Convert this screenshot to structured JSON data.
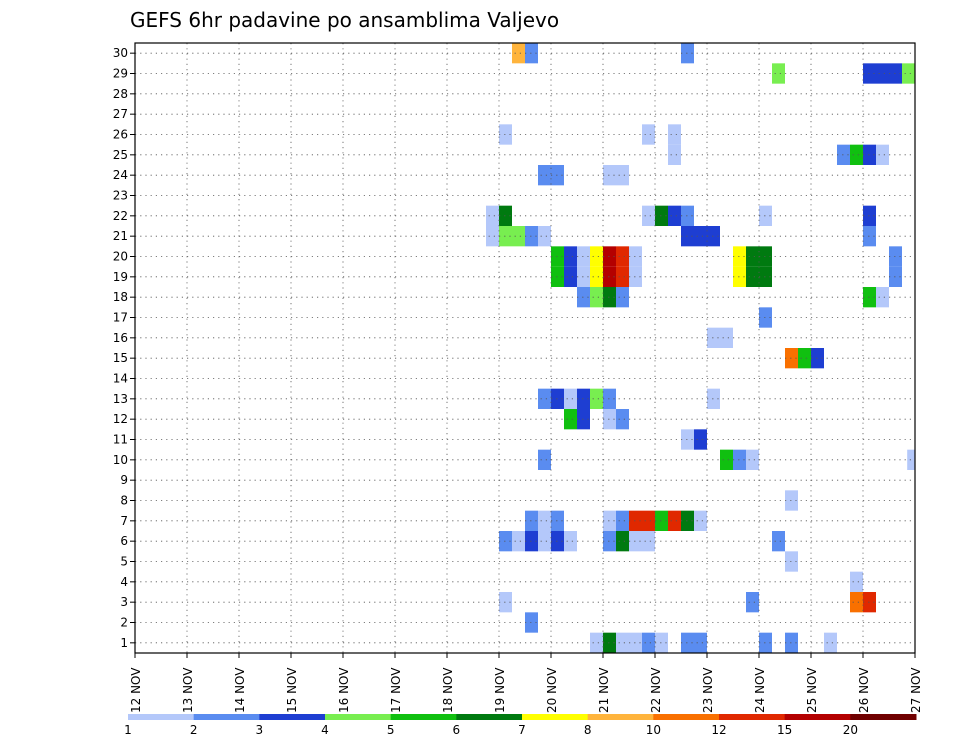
{
  "chart_data": {
    "type": "heatmap",
    "title": "GEFS 6hr padavine po ansamblima Valjevo",
    "xlabel": "",
    "ylabel": "",
    "x_tick_labels": [
      "12 NOV",
      "13 NOV",
      "14 NOV",
      "15 NOV",
      "16 NOV",
      "17 NOV",
      "18 NOV",
      "19 NOV",
      "20 NOV",
      "21 NOV",
      "22 NOV",
      "23 NOV",
      "24 NOV",
      "25 NOV",
      "26 NOV",
      "27 NOV"
    ],
    "x_range_days": [
      12,
      27
    ],
    "y_tick_labels": [
      1,
      2,
      3,
      4,
      5,
      6,
      7,
      8,
      9,
      10,
      11,
      12,
      13,
      14,
      15,
      16,
      17,
      18,
      19,
      20,
      21,
      22,
      23,
      24,
      25,
      26,
      27,
      28,
      29,
      30
    ],
    "y_range": [
      0.5,
      30.5
    ],
    "grid": "dotted",
    "legend": {
      "position": "bottom",
      "labels": [
        "1",
        "2",
        "3",
        "4",
        "5",
        "6",
        "7",
        "8",
        "10",
        "12",
        "15",
        "20"
      ],
      "colors": [
        "#b4c8fa",
        "#5a8cf0",
        "#1e3ed2",
        "#78ee50",
        "#10c010",
        "#007a10",
        "#ffff00",
        "#ffb43c",
        "#f97000",
        "#e02800",
        "#b40000",
        "#700000"
      ]
    },
    "cell_width_days": 0.25,
    "cells": [
      {
        "member": 30,
        "day": 19.25,
        "color": "#ffb43c"
      },
      {
        "member": 30,
        "day": 19.5,
        "color": "#5a8cf0"
      },
      {
        "member": 30,
        "day": 22.5,
        "color": "#5a8cf0"
      },
      {
        "member": 29,
        "day": 24.25,
        "color": "#78ee50"
      },
      {
        "member": 29,
        "day": 26.0,
        "color": "#1e3ed2"
      },
      {
        "member": 29,
        "day": 26.25,
        "color": "#1e3ed2"
      },
      {
        "member": 29,
        "day": 26.5,
        "color": "#1e3ed2"
      },
      {
        "member": 29,
        "day": 26.75,
        "color": "#78ee50"
      },
      {
        "member": 26,
        "day": 19.0,
        "color": "#b4c8fa"
      },
      {
        "member": 26,
        "day": 21.75,
        "color": "#b4c8fa"
      },
      {
        "member": 26,
        "day": 22.25,
        "color": "#b4c8fa"
      },
      {
        "member": 25,
        "day": 22.25,
        "color": "#b4c8fa"
      },
      {
        "member": 25,
        "day": 25.5,
        "color": "#5a8cf0"
      },
      {
        "member": 25,
        "day": 25.75,
        "color": "#10c010"
      },
      {
        "member": 25,
        "day": 26.0,
        "color": "#1e3ed2"
      },
      {
        "member": 25,
        "day": 26.25,
        "color": "#b4c8fa"
      },
      {
        "member": 24,
        "day": 19.75,
        "color": "#5a8cf0"
      },
      {
        "member": 24,
        "day": 20.0,
        "color": "#5a8cf0"
      },
      {
        "member": 24,
        "day": 21.0,
        "color": "#b4c8fa"
      },
      {
        "member": 24,
        "day": 21.25,
        "color": "#b4c8fa"
      },
      {
        "member": 22,
        "day": 18.75,
        "color": "#b4c8fa"
      },
      {
        "member": 22,
        "day": 19.0,
        "color": "#007a10"
      },
      {
        "member": 22,
        "day": 21.75,
        "color": "#b4c8fa"
      },
      {
        "member": 22,
        "day": 22.0,
        "color": "#007a10"
      },
      {
        "member": 22,
        "day": 22.25,
        "color": "#1e3ed2"
      },
      {
        "member": 22,
        "day": 22.5,
        "color": "#5a8cf0"
      },
      {
        "member": 22,
        "day": 24.0,
        "color": "#b4c8fa"
      },
      {
        "member": 22,
        "day": 26.0,
        "color": "#1e3ed2"
      },
      {
        "member": 21,
        "day": 18.75,
        "color": "#b4c8fa"
      },
      {
        "member": 21,
        "day": 19.0,
        "color": "#78ee50"
      },
      {
        "member": 21,
        "day": 19.25,
        "color": "#78ee50"
      },
      {
        "member": 21,
        "day": 19.5,
        "color": "#5a8cf0"
      },
      {
        "member": 21,
        "day": 19.75,
        "color": "#b4c8fa"
      },
      {
        "member": 21,
        "day": 22.5,
        "color": "#1e3ed2"
      },
      {
        "member": 21,
        "day": 22.75,
        "color": "#1e3ed2"
      },
      {
        "member": 21,
        "day": 23.0,
        "color": "#1e3ed2"
      },
      {
        "member": 21,
        "day": 26.0,
        "color": "#5a8cf0"
      },
      {
        "member": 20,
        "day": 20.0,
        "color": "#10c010"
      },
      {
        "member": 20,
        "day": 20.25,
        "color": "#1e3ed2"
      },
      {
        "member": 20,
        "day": 20.5,
        "color": "#b4c8fa"
      },
      {
        "member": 20,
        "day": 20.75,
        "color": "#ffff00"
      },
      {
        "member": 20,
        "day": 21.0,
        "color": "#b40000"
      },
      {
        "member": 20,
        "day": 21.25,
        "color": "#e02800"
      },
      {
        "member": 20,
        "day": 21.5,
        "color": "#b4c8fa"
      },
      {
        "member": 20,
        "day": 23.5,
        "color": "#ffff00"
      },
      {
        "member": 20,
        "day": 23.75,
        "color": "#007a10"
      },
      {
        "member": 20,
        "day": 24.0,
        "color": "#007a10"
      },
      {
        "member": 20,
        "day": 26.5,
        "color": "#5a8cf0"
      },
      {
        "member": 19,
        "day": 20.0,
        "color": "#10c010"
      },
      {
        "member": 19,
        "day": 20.25,
        "color": "#1e3ed2"
      },
      {
        "member": 19,
        "day": 20.5,
        "color": "#b4c8fa"
      },
      {
        "member": 19,
        "day": 20.75,
        "color": "#ffff00"
      },
      {
        "member": 19,
        "day": 21.0,
        "color": "#b40000"
      },
      {
        "member": 19,
        "day": 21.25,
        "color": "#e02800"
      },
      {
        "member": 19,
        "day": 21.5,
        "color": "#b4c8fa"
      },
      {
        "member": 19,
        "day": 23.5,
        "color": "#ffff00"
      },
      {
        "member": 19,
        "day": 23.75,
        "color": "#007a10"
      },
      {
        "member": 19,
        "day": 24.0,
        "color": "#007a10"
      },
      {
        "member": 19,
        "day": 26.5,
        "color": "#5a8cf0"
      },
      {
        "member": 18,
        "day": 20.5,
        "color": "#5a8cf0"
      },
      {
        "member": 18,
        "day": 20.75,
        "color": "#78ee50"
      },
      {
        "member": 18,
        "day": 21.0,
        "color": "#007a10"
      },
      {
        "member": 18,
        "day": 21.25,
        "color": "#5a8cf0"
      },
      {
        "member": 18,
        "day": 26.0,
        "color": "#10c010"
      },
      {
        "member": 18,
        "day": 26.25,
        "color": "#b4c8fa"
      },
      {
        "member": 17,
        "day": 24.0,
        "color": "#5a8cf0"
      },
      {
        "member": 16,
        "day": 23.0,
        "color": "#b4c8fa"
      },
      {
        "member": 16,
        "day": 23.25,
        "color": "#b4c8fa"
      },
      {
        "member": 15,
        "day": 24.5,
        "color": "#f97000"
      },
      {
        "member": 15,
        "day": 24.75,
        "color": "#10c010"
      },
      {
        "member": 15,
        "day": 25.0,
        "color": "#1e3ed2"
      },
      {
        "member": 13,
        "day": 19.75,
        "color": "#5a8cf0"
      },
      {
        "member": 13,
        "day": 20.0,
        "color": "#1e3ed2"
      },
      {
        "member": 13,
        "day": 20.25,
        "color": "#b4c8fa"
      },
      {
        "member": 13,
        "day": 20.5,
        "color": "#1e3ed2"
      },
      {
        "member": 13,
        "day": 20.75,
        "color": "#78ee50"
      },
      {
        "member": 13,
        "day": 21.0,
        "color": "#5a8cf0"
      },
      {
        "member": 13,
        "day": 23.0,
        "color": "#b4c8fa"
      },
      {
        "member": 12,
        "day": 20.25,
        "color": "#10c010"
      },
      {
        "member": 12,
        "day": 20.5,
        "color": "#1e3ed2"
      },
      {
        "member": 12,
        "day": 21.0,
        "color": "#b4c8fa"
      },
      {
        "member": 12,
        "day": 21.25,
        "color": "#5a8cf0"
      },
      {
        "member": 11,
        "day": 22.5,
        "color": "#b4c8fa"
      },
      {
        "member": 11,
        "day": 22.75,
        "color": "#1e3ed2"
      },
      {
        "member": 10,
        "day": 19.75,
        "color": "#5a8cf0"
      },
      {
        "member": 10,
        "day": 23.25,
        "color": "#10c010"
      },
      {
        "member": 10,
        "day": 23.5,
        "color": "#5a8cf0"
      },
      {
        "member": 10,
        "day": 23.75,
        "color": "#b4c8fa"
      },
      {
        "member": 10,
        "day": 26.85,
        "color": "#b4c8fa"
      },
      {
        "member": 8,
        "day": 24.5,
        "color": "#b4c8fa"
      },
      {
        "member": 7,
        "day": 19.5,
        "color": "#5a8cf0"
      },
      {
        "member": 7,
        "day": 19.75,
        "color": "#b4c8fa"
      },
      {
        "member": 7,
        "day": 20.0,
        "color": "#5a8cf0"
      },
      {
        "member": 7,
        "day": 21.0,
        "color": "#b4c8fa"
      },
      {
        "member": 7,
        "day": 21.25,
        "color": "#5a8cf0"
      },
      {
        "member": 7,
        "day": 21.5,
        "color": "#e02800"
      },
      {
        "member": 7,
        "day": 21.75,
        "color": "#e02800"
      },
      {
        "member": 7,
        "day": 22.0,
        "color": "#10c010"
      },
      {
        "member": 7,
        "day": 22.25,
        "color": "#e02800"
      },
      {
        "member": 7,
        "day": 22.5,
        "color": "#007a10"
      },
      {
        "member": 7,
        "day": 22.75,
        "color": "#b4c8fa"
      },
      {
        "member": 6,
        "day": 19.0,
        "color": "#5a8cf0"
      },
      {
        "member": 6,
        "day": 19.25,
        "color": "#b4c8fa"
      },
      {
        "member": 6,
        "day": 19.5,
        "color": "#1e3ed2"
      },
      {
        "member": 6,
        "day": 19.75,
        "color": "#b4c8fa"
      },
      {
        "member": 6,
        "day": 20.0,
        "color": "#1e3ed2"
      },
      {
        "member": 6,
        "day": 20.25,
        "color": "#b4c8fa"
      },
      {
        "member": 6,
        "day": 21.0,
        "color": "#5a8cf0"
      },
      {
        "member": 6,
        "day": 21.25,
        "color": "#007a10"
      },
      {
        "member": 6,
        "day": 21.5,
        "color": "#b4c8fa"
      },
      {
        "member": 6,
        "day": 21.75,
        "color": "#b4c8fa"
      },
      {
        "member": 6,
        "day": 24.25,
        "color": "#5a8cf0"
      },
      {
        "member": 5,
        "day": 24.5,
        "color": "#b4c8fa"
      },
      {
        "member": 4,
        "day": 25.75,
        "color": "#b4c8fa"
      },
      {
        "member": 3,
        "day": 19.0,
        "color": "#b4c8fa"
      },
      {
        "member": 3,
        "day": 23.75,
        "color": "#5a8cf0"
      },
      {
        "member": 3,
        "day": 25.75,
        "color": "#f97000"
      },
      {
        "member": 3,
        "day": 26.0,
        "color": "#e02800"
      },
      {
        "member": 2,
        "day": 19.5,
        "color": "#5a8cf0"
      },
      {
        "member": 1,
        "day": 20.75,
        "color": "#b4c8fa"
      },
      {
        "member": 1,
        "day": 21.0,
        "color": "#007a10"
      },
      {
        "member": 1,
        "day": 21.25,
        "color": "#b4c8fa"
      },
      {
        "member": 1,
        "day": 21.5,
        "color": "#b4c8fa"
      },
      {
        "member": 1,
        "day": 21.75,
        "color": "#5a8cf0"
      },
      {
        "member": 1,
        "day": 22.0,
        "color": "#b4c8fa"
      },
      {
        "member": 1,
        "day": 22.5,
        "color": "#5a8cf0"
      },
      {
        "member": 1,
        "day": 22.75,
        "color": "#5a8cf0"
      },
      {
        "member": 1,
        "day": 24.0,
        "color": "#5a8cf0"
      },
      {
        "member": 1,
        "day": 24.5,
        "color": "#5a8cf0"
      },
      {
        "member": 1,
        "day": 25.25,
        "color": "#b4c8fa"
      }
    ]
  }
}
